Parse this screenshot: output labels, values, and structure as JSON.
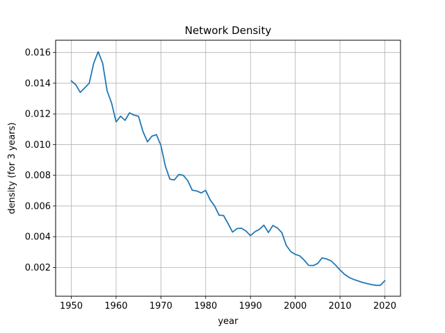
{
  "chart_data": {
    "type": "line",
    "title": "Network Density",
    "xlabel": "year",
    "ylabel": "density (for 3 years)",
    "xlim": [
      1946.5,
      2023.5
    ],
    "ylim": [
      0.00012,
      0.0168
    ],
    "grid": true,
    "x_ticks": [
      1950,
      1960,
      1970,
      1980,
      1990,
      2000,
      2010,
      2020
    ],
    "x_tick_labels": [
      "1950",
      "1960",
      "1970",
      "1980",
      "1990",
      "2000",
      "2010",
      "2020"
    ],
    "y_ticks": [
      0.002,
      0.004,
      0.006,
      0.008,
      0.01,
      0.012,
      0.014,
      0.016
    ],
    "y_tick_labels": [
      "0.002",
      "0.004",
      "0.006",
      "0.008",
      "0.010",
      "0.012",
      "0.014",
      "0.016"
    ],
    "line_color": "#1f77b4",
    "series": [
      {
        "x": [
          1950,
          1951,
          1952,
          1953,
          1954,
          1955,
          1956,
          1957,
          1958,
          1959,
          1960,
          1961,
          1962,
          1963,
          1964,
          1965,
          1966,
          1967,
          1968,
          1969,
          1970,
          1971,
          1972,
          1973,
          1974,
          1975,
          1976,
          1977,
          1978,
          1979,
          1980,
          1981,
          1982,
          1983,
          1984,
          1985,
          1986,
          1987,
          1988,
          1989,
          1990,
          1991,
          1992,
          1993,
          1994,
          1995,
          1996,
          1997,
          1998,
          1999,
          2000,
          2001,
          2002,
          2003,
          2004,
          2005,
          2006,
          2007,
          2008,
          2009,
          2010,
          2011,
          2012,
          2013,
          2014,
          2015,
          2016,
          2017,
          2018,
          2019,
          2020
        ],
        "values": [
          0.01415,
          0.0139,
          0.0134,
          0.0137,
          0.014,
          0.0153,
          0.01605,
          0.0153,
          0.0135,
          0.0127,
          0.01148,
          0.01185,
          0.01158,
          0.01207,
          0.01192,
          0.01185,
          0.01085,
          0.01018,
          0.01055,
          0.01065,
          0.00995,
          0.0086,
          0.00775,
          0.0077,
          0.00805,
          0.008,
          0.00765,
          0.00703,
          0.00698,
          0.00685,
          0.00702,
          0.0064,
          0.006,
          0.0054,
          0.00538,
          0.00485,
          0.0043,
          0.00453,
          0.00455,
          0.00437,
          0.00407,
          0.00432,
          0.00448,
          0.00475,
          0.00427,
          0.00473,
          0.00457,
          0.00427,
          0.00343,
          0.00303,
          0.00285,
          0.00275,
          0.00247,
          0.00213,
          0.00212,
          0.00225,
          0.00262,
          0.00255,
          0.00243,
          0.00215,
          0.00183,
          0.00155,
          0.00135,
          0.00122,
          0.00112,
          0.00102,
          0.00095,
          0.00088,
          0.00083,
          0.00083,
          0.00113
        ]
      }
    ]
  }
}
